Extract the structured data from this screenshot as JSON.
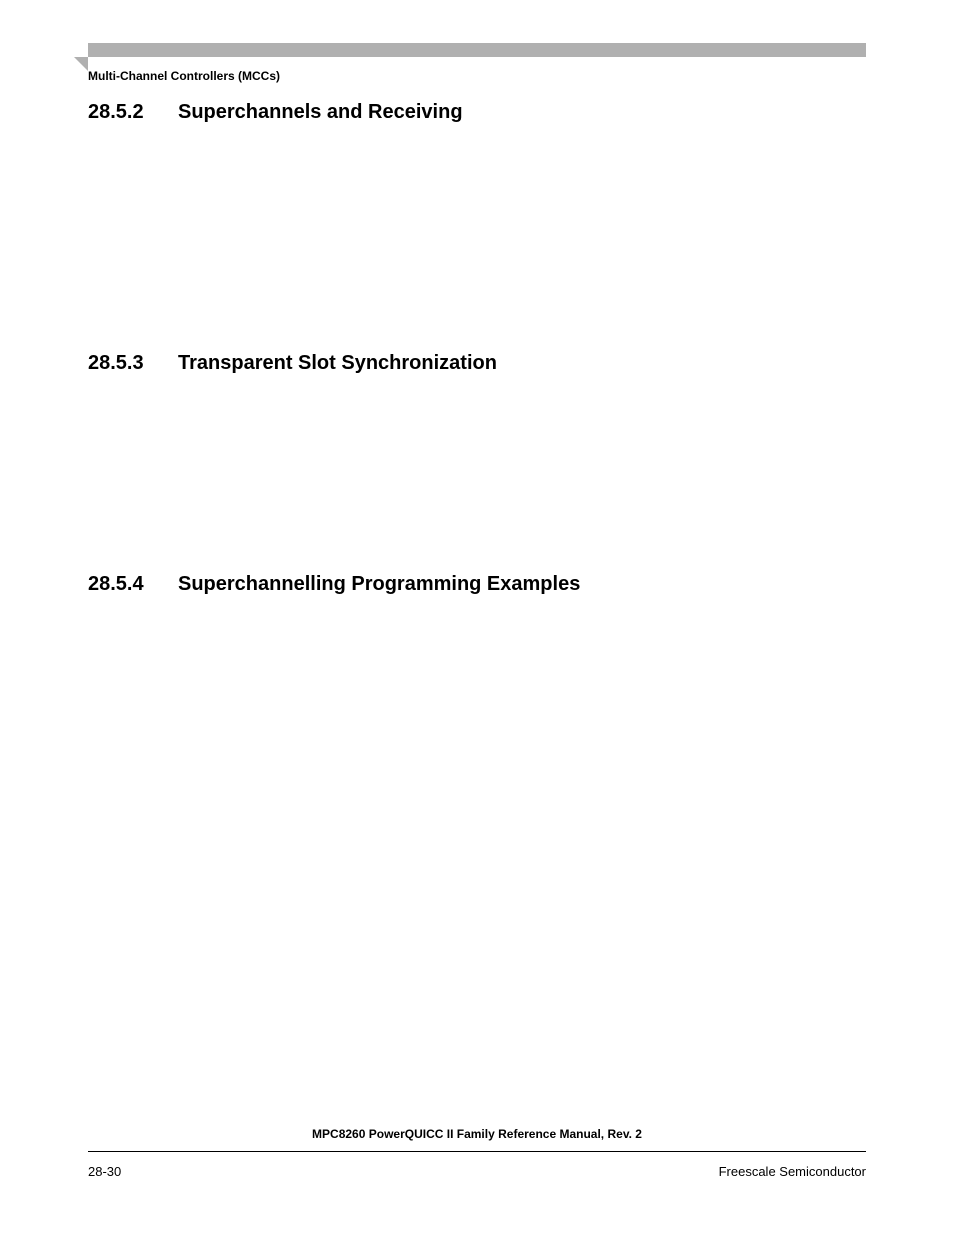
{
  "header": {
    "chapter_label": "Multi-Channel Controllers (MCCs)"
  },
  "sections": [
    {
      "number": "28.5.2",
      "title": "Superchannels and Receiving"
    },
    {
      "number": "28.5.3",
      "title": "Transparent Slot Synchronization"
    },
    {
      "number": "28.5.4",
      "title": "Superchannelling Programming Examples"
    }
  ],
  "footer": {
    "manual_title": "MPC8260 PowerQUICC II Family Reference Manual, Rev. 2",
    "page_number": "28-30",
    "company": "Freescale Semiconductor"
  }
}
